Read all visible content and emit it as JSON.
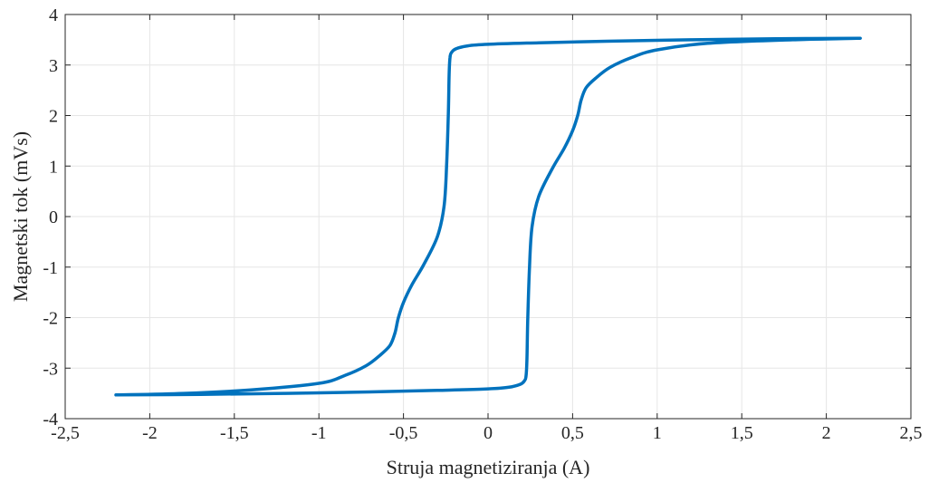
{
  "chart_data": {
    "type": "line",
    "title": "",
    "xlabel": "Struja magnetiziranja (A)",
    "ylabel": "Magnetski tok (mVs)",
    "xlim": [
      -2.5,
      2.5
    ],
    "ylim": [
      -4,
      4
    ],
    "grid": true,
    "x_ticks": [
      {
        "value": -2.5,
        "label": "-2,5"
      },
      {
        "value": -2,
        "label": "-2"
      },
      {
        "value": -1.5,
        "label": "-1,5"
      },
      {
        "value": -1,
        "label": "-1"
      },
      {
        "value": -0.5,
        "label": "-0,5"
      },
      {
        "value": 0,
        "label": "0"
      },
      {
        "value": 0.5,
        "label": "0,5"
      },
      {
        "value": 1,
        "label": "1"
      },
      {
        "value": 1.5,
        "label": "1,5"
      },
      {
        "value": 2,
        "label": "2"
      },
      {
        "value": 2.5,
        "label": "2,5"
      }
    ],
    "y_ticks": [
      {
        "value": -4,
        "label": "-4"
      },
      {
        "value": -3,
        "label": "-3"
      },
      {
        "value": -2,
        "label": "-2"
      },
      {
        "value": -1,
        "label": "-1"
      },
      {
        "value": 0,
        "label": "0"
      },
      {
        "value": 1,
        "label": "1"
      },
      {
        "value": 2,
        "label": "2"
      },
      {
        "value": 3,
        "label": "3"
      },
      {
        "value": 4,
        "label": "4"
      }
    ],
    "series": [
      {
        "color": "#0072BD",
        "x": [
          -2.2,
          -1.8,
          -1.4,
          -1.0,
          -0.85,
          -0.72,
          -0.64,
          -0.58,
          -0.55,
          -0.53,
          -0.5,
          -0.45,
          -0.38,
          -0.3,
          -0.26,
          -0.245,
          -0.235,
          -0.23,
          -0.225,
          -0.215,
          -0.19,
          -0.12,
          0.0,
          0.3,
          0.7,
          1.2,
          1.7,
          2.2,
          1.8,
          1.3,
          1.0,
          0.85,
          0.72,
          0.64,
          0.58,
          0.55,
          0.53,
          0.5,
          0.45,
          0.38,
          0.3,
          0.26,
          0.245,
          0.235,
          0.23,
          0.225,
          0.215,
          0.19,
          0.12,
          0.0,
          -0.3,
          -0.7,
          -1.2,
          -1.7,
          -2.2
        ],
        "y": [
          -3.53,
          -3.5,
          -3.43,
          -3.3,
          -3.15,
          -2.95,
          -2.75,
          -2.55,
          -2.3,
          -2.0,
          -1.7,
          -1.35,
          -0.95,
          -0.4,
          0.2,
          1.0,
          2.0,
          2.8,
          3.15,
          3.25,
          3.32,
          3.38,
          3.41,
          3.44,
          3.47,
          3.5,
          3.52,
          3.53,
          3.5,
          3.43,
          3.3,
          3.15,
          2.95,
          2.75,
          2.55,
          2.3,
          2.0,
          1.7,
          1.35,
          0.95,
          0.4,
          -0.2,
          -1.0,
          -2.0,
          -2.8,
          -3.15,
          -3.25,
          -3.32,
          -3.38,
          -3.41,
          -3.44,
          -3.47,
          -3.5,
          -3.52,
          -3.53
        ]
      }
    ]
  }
}
